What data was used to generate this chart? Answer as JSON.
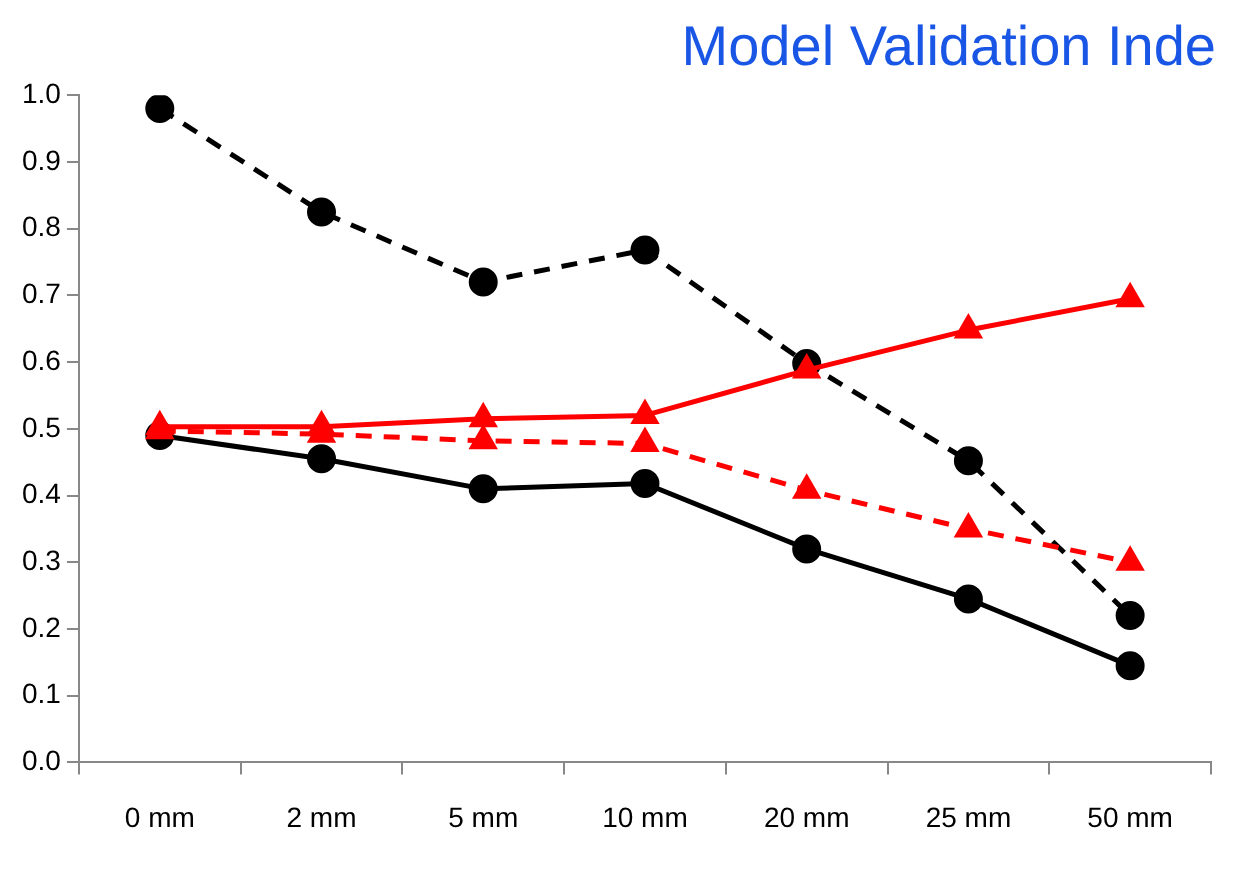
{
  "chart_data": {
    "type": "line",
    "title": "Model Validation Inde",
    "categories": [
      "0 mm",
      "2 mm",
      "5 mm",
      "10 mm",
      "20 mm",
      "25 mm",
      "50 mm"
    ],
    "series": [
      {
        "color": "#000000",
        "marker": "circle",
        "line_style": "dashed",
        "values": [
          0.98,
          0.825,
          0.72,
          0.768,
          0.598,
          0.452,
          0.22
        ]
      },
      {
        "color": "#000000",
        "marker": "circle",
        "line_style": "solid",
        "values": [
          0.49,
          0.455,
          0.41,
          0.418,
          0.32,
          0.245,
          0.145
        ]
      },
      {
        "color": "#ff0000",
        "marker": "triangle",
        "line_style": "solid",
        "values": [
          0.503,
          0.503,
          0.515,
          0.52,
          0.588,
          0.648,
          0.695
        ]
      },
      {
        "color": "#ff0000",
        "marker": "triangle",
        "line_style": "dashed",
        "values": [
          0.497,
          0.492,
          0.482,
          0.478,
          0.408,
          0.35,
          0.3
        ]
      }
    ],
    "ylim": [
      0,
      1
    ],
    "yticks": [
      {
        "value": 0,
        "label": "0.0"
      },
      0.1,
      0.2,
      0.3,
      0.4,
      0.5,
      0.6,
      0.7,
      0.8,
      0.9,
      {
        "value": 1,
        "label": "1.0"
      }
    ],
    "grid": false,
    "legend": false
  }
}
